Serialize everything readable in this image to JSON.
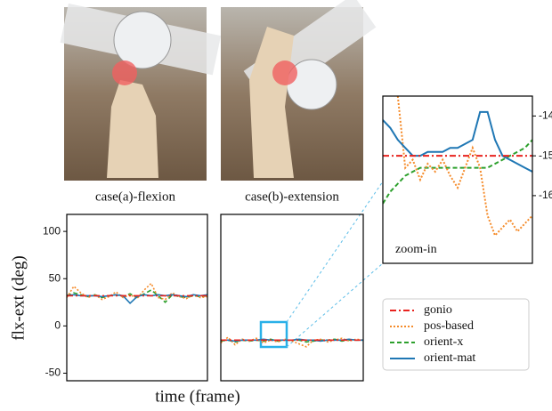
{
  "figure": {
    "captions": [
      "case(a)-flexion",
      "case(b)-extension"
    ],
    "ylabel": "flx-ext (deg)",
    "xlabel": "time (frame)"
  },
  "chart_data": [
    {
      "type": "line",
      "x": [
        0,
        1,
        2,
        3,
        4,
        5,
        6,
        7,
        8,
        9,
        10,
        11,
        12,
        13,
        14,
        15,
        16,
        17,
        18,
        19,
        20
      ],
      "xlim": [
        0,
        20
      ],
      "ylim": [
        -58,
        118
      ],
      "yticks": [
        -50,
        0,
        50,
        100
      ],
      "series": [
        {
          "color": "#e8231f",
          "style": "dash-dot",
          "values": [
            32,
            32,
            32,
            32,
            32,
            32,
            32,
            32,
            32,
            32,
            32,
            32,
            32,
            32,
            32,
            32,
            32,
            32,
            32,
            32,
            32
          ]
        },
        {
          "color": "#f58b2a",
          "style": "dotted",
          "values": [
            30,
            42,
            35,
            30,
            33,
            28,
            31,
            36,
            30,
            33,
            29,
            38,
            45,
            30,
            28,
            35,
            31,
            29,
            33,
            30,
            31
          ]
        },
        {
          "color": "#2ca02c",
          "style": "dashed",
          "values": [
            32,
            35,
            33,
            31,
            33,
            30,
            32,
            33,
            31,
            34,
            30,
            34,
            38,
            32,
            25,
            33,
            31,
            30,
            32,
            31,
            32
          ]
        },
        {
          "color": "#1f77b4",
          "style": "solid",
          "values": [
            32,
            33,
            32,
            32,
            32,
            31,
            32,
            33,
            32,
            24,
            31,
            33,
            32,
            33,
            32,
            33,
            32,
            31,
            33,
            32,
            33
          ]
        }
      ]
    },
    {
      "type": "line",
      "x": [
        0,
        1,
        2,
        3,
        4,
        5,
        6,
        7,
        8,
        9,
        10,
        11,
        12,
        13,
        14,
        15,
        16,
        17,
        18,
        19,
        20
      ],
      "xlim": [
        0,
        20
      ],
      "ylim": [
        -58,
        118
      ],
      "series": [
        {
          "name": "gonio",
          "color": "#e8231f",
          "style": "dash-dot",
          "values": [
            -15,
            -15,
            -15,
            -15,
            -15,
            -15,
            -15,
            -15,
            -15,
            -15,
            -15,
            -15,
            -15,
            -15,
            -15,
            -15,
            -15,
            -15,
            -15,
            -15,
            -15
          ]
        },
        {
          "name": "pos-based",
          "color": "#f58b2a",
          "style": "dotted",
          "values": [
            -18,
            -12,
            -20,
            -14,
            -16,
            -13,
            -18,
            -15,
            -17,
            -14,
            -16,
            -19,
            -22,
            -15,
            -14,
            -17,
            -15,
            -13,
            -16,
            -14,
            -15
          ]
        },
        {
          "name": "orient-x",
          "color": "#2ca02c",
          "style": "dashed",
          "values": [
            -16,
            -15,
            -17,
            -15,
            -16,
            -15,
            -16,
            -14,
            -16,
            -15,
            -15,
            -15,
            -17,
            -16,
            -15,
            -15,
            -14,
            -16,
            -15,
            -15,
            -15
          ]
        },
        {
          "name": "orient-mat",
          "color": "#1f77b4",
          "style": "solid",
          "values": [
            -15,
            -15,
            -16,
            -15,
            -15,
            -15,
            -14,
            -15,
            -15,
            -15,
            -15,
            -14,
            -15,
            -15,
            -16,
            -15,
            -15,
            -15,
            -14,
            -15,
            -15
          ]
        }
      ]
    },
    {
      "type": "line",
      "annotation": "zoom-in",
      "x": [
        0,
        1,
        2,
        3,
        4,
        5,
        6,
        7,
        8,
        9,
        10,
        11,
        12,
        13,
        14,
        15,
        16,
        17,
        18,
        19,
        20
      ],
      "xlim": [
        0,
        20
      ],
      "ylim": [
        -17.7,
        -13.5
      ],
      "yticks": [
        -16,
        -15,
        -14
      ],
      "series": [
        {
          "color": "#e8231f",
          "style": "dash-dot",
          "values": [
            -15,
            -15,
            -15,
            -15,
            -15,
            -15,
            -15,
            -15,
            -15,
            -15,
            -15,
            -15,
            -15,
            -15,
            -15,
            -15,
            -15,
            -15,
            -15,
            -15,
            -15
          ]
        },
        {
          "color": "#f58b2a",
          "style": "dotted",
          "values": [
            null,
            null,
            -13.5,
            -15.3,
            -15.1,
            -15.6,
            -15.2,
            -15.4,
            -15.1,
            -15.5,
            -15.8,
            -15.3,
            -14.8,
            -15.3,
            -16.5,
            -17.0,
            -16.8,
            -16.6,
            -16.9,
            -16.7,
            -16.5
          ]
        },
        {
          "color": "#2ca02c",
          "style": "dashed",
          "values": [
            -16.2,
            -15.9,
            -15.7,
            -15.5,
            -15.4,
            -15.3,
            -15.3,
            -15.3,
            -15.3,
            -15.3,
            -15.3,
            -15.3,
            -15.3,
            -15.3,
            -15.3,
            -15.2,
            -15.1,
            -15.0,
            -14.9,
            -14.8,
            -14.6
          ]
        },
        {
          "color": "#1f77b4",
          "style": "solid",
          "values": [
            -14.1,
            -14.3,
            -14.6,
            -14.8,
            -15.0,
            -15.0,
            -14.9,
            -14.9,
            -14.9,
            -14.8,
            -14.8,
            -14.7,
            -14.6,
            -13.9,
            -13.9,
            -14.6,
            -15.0,
            -15.1,
            -15.2,
            -15.3,
            -15.4
          ]
        }
      ]
    }
  ]
}
